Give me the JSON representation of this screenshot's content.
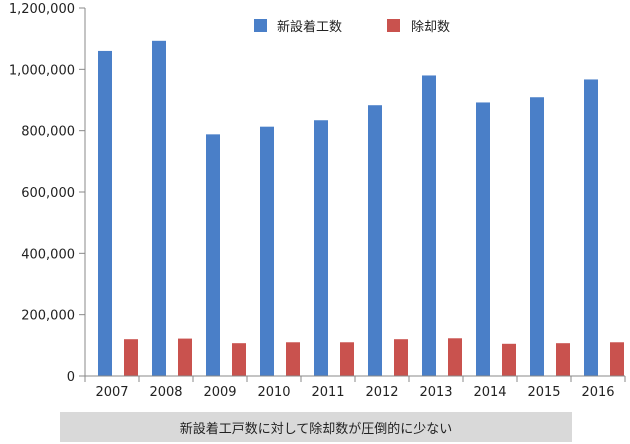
{
  "chart_data": {
    "type": "bar",
    "categories": [
      "2007",
      "2008",
      "2009",
      "2010",
      "2011",
      "2012",
      "2013",
      "2014",
      "2015",
      "2016"
    ],
    "series": [
      {
        "name": "新設着工数",
        "color": "#4a7fc8",
        "values": [
          1060000,
          1093000,
          788000,
          813000,
          834000,
          883000,
          980000,
          892000,
          909000,
          967000
        ]
      },
      {
        "name": "除却数",
        "color": "#c9524e",
        "values": [
          120000,
          122000,
          107000,
          110000,
          110000,
          120000,
          123000,
          105000,
          107000,
          110000
        ]
      }
    ],
    "ylim": [
      0,
      1200000
    ],
    "yticks": [
      "0",
      "200,000",
      "400,000",
      "600,000",
      "800,000",
      "1,000,000",
      "1,200,000"
    ],
    "legend_position": "top",
    "grid": false
  },
  "caption": "新設着工戸数に対して除却数が圧倒的に少ない"
}
